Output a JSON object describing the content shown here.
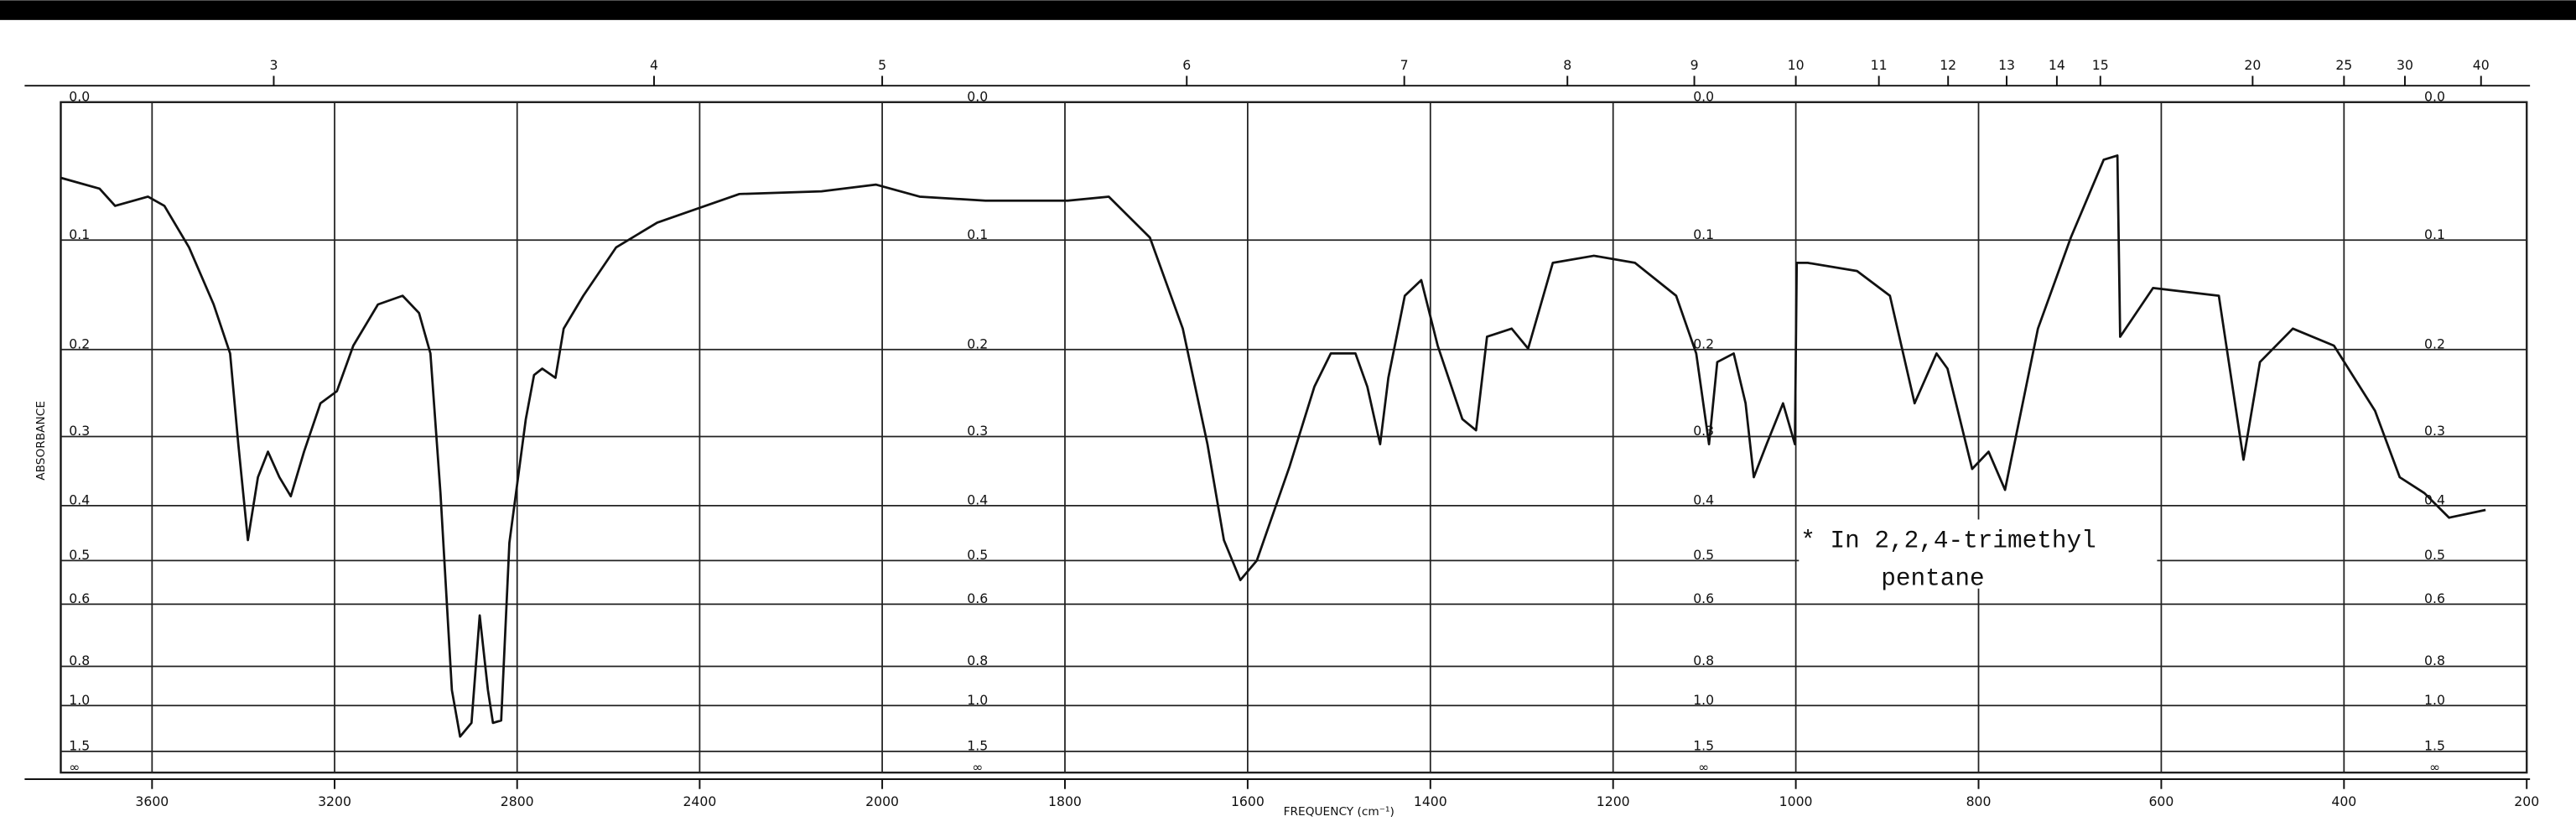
{
  "chart_data": {
    "type": "line",
    "y_label": "ABSORBANCE",
    "x_label": "FREQUENCY (cm⁻¹)",
    "annotations": [
      "* In 2,2,4-trimethyl",
      "pentane"
    ],
    "color": "#111111",
    "yscale": "absorbance",
    "xlim": [
      3800,
      200
    ],
    "xscale_break": 2000,
    "ylim": [
      0,
      null
    ],
    "xticks": [
      3600,
      3200,
      2800,
      2400,
      2000,
      1800,
      1600,
      1400,
      1200,
      1000,
      800,
      600,
      400,
      200
    ],
    "x2ticks": [
      3,
      4,
      5,
      6,
      7,
      8,
      9,
      10,
      11,
      12,
      13,
      14,
      15,
      20,
      25,
      30,
      40
    ],
    "yticks": [
      {
        "value": 0,
        "label": "0.0"
      },
      0.1,
      0.2,
      0.3,
      0.4,
      0.5,
      0.6,
      0.8,
      {
        "value": 1,
        "label": "1.0"
      },
      1.5,
      {
        "value": null,
        "label": "∞"
      }
    ],
    "grid": true,
    "x": [
      3800,
      3715,
      3681,
      3609,
      3573,
      3519,
      3465,
      3429,
      3411,
      3390,
      3368,
      3346,
      3321,
      3296,
      3267,
      3231,
      3195,
      3159,
      3105,
      3051,
      3015,
      2990,
      2968,
      2943,
      2925,
      2900,
      2882,
      2864,
      2853,
      2835,
      2817,
      2781,
      2763,
      2745,
      2716,
      2698,
      2655,
      2583,
      2493,
      2313,
      2133,
      2014,
      1959,
      1887,
      1797,
      1752,
      1707,
      1671,
      1644,
      1626,
      1608,
      1590,
      1554,
      1527,
      1509,
      1482,
      1469,
      1455,
      1446,
      1428,
      1410,
      1392,
      1365,
      1350,
      1338,
      1311,
      1293,
      1266,
      1221,
      1176,
      1131,
      1109,
      1095,
      1086,
      1068,
      1055,
      1046,
      1032,
      1014,
      1001,
      999,
      987,
      933,
      897,
      870,
      846,
      834,
      807,
      789,
      771,
      735,
      699,
      663,
      648,
      645,
      609,
      537,
      510,
      492,
      456,
      411,
      366,
      339,
      312,
      285,
      245
    ],
    "values": [
      0.052,
      0.06,
      0.073,
      0.066,
      0.073,
      0.106,
      0.156,
      0.204,
      0.31,
      0.46,
      0.356,
      0.32,
      0.356,
      0.385,
      0.32,
      0.259,
      0.245,
      0.196,
      0.156,
      0.148,
      0.164,
      0.204,
      0.38,
      0.91,
      1.27,
      1.13,
      0.63,
      0.91,
      1.13,
      1.11,
      0.465,
      0.278,
      0.227,
      0.22,
      0.23,
      0.179,
      0.148,
      0.106,
      0.086,
      0.064,
      0.062,
      0.057,
      0.066,
      0.069,
      0.069,
      0.066,
      0.098,
      0.179,
      0.31,
      0.46,
      0.542,
      0.5,
      0.34,
      0.24,
      0.204,
      0.204,
      0.24,
      0.31,
      0.23,
      0.148,
      0.134,
      0.196,
      0.278,
      0.292,
      0.187,
      0.179,
      0.199,
      0.119,
      0.113,
      0.119,
      0.148,
      0.204,
      0.31,
      0.213,
      0.204,
      0.259,
      0.356,
      0.31,
      0.259,
      0.31,
      0.119,
      0.119,
      0.126,
      0.148,
      0.259,
      0.204,
      0.22,
      0.344,
      0.32,
      0.375,
      0.179,
      0.098,
      0.039,
      0.036,
      0.187,
      0.141,
      0.148,
      0.331,
      0.213,
      0.179,
      0.196,
      0.268,
      0.356,
      0.38,
      0.42,
      0.407
    ]
  }
}
